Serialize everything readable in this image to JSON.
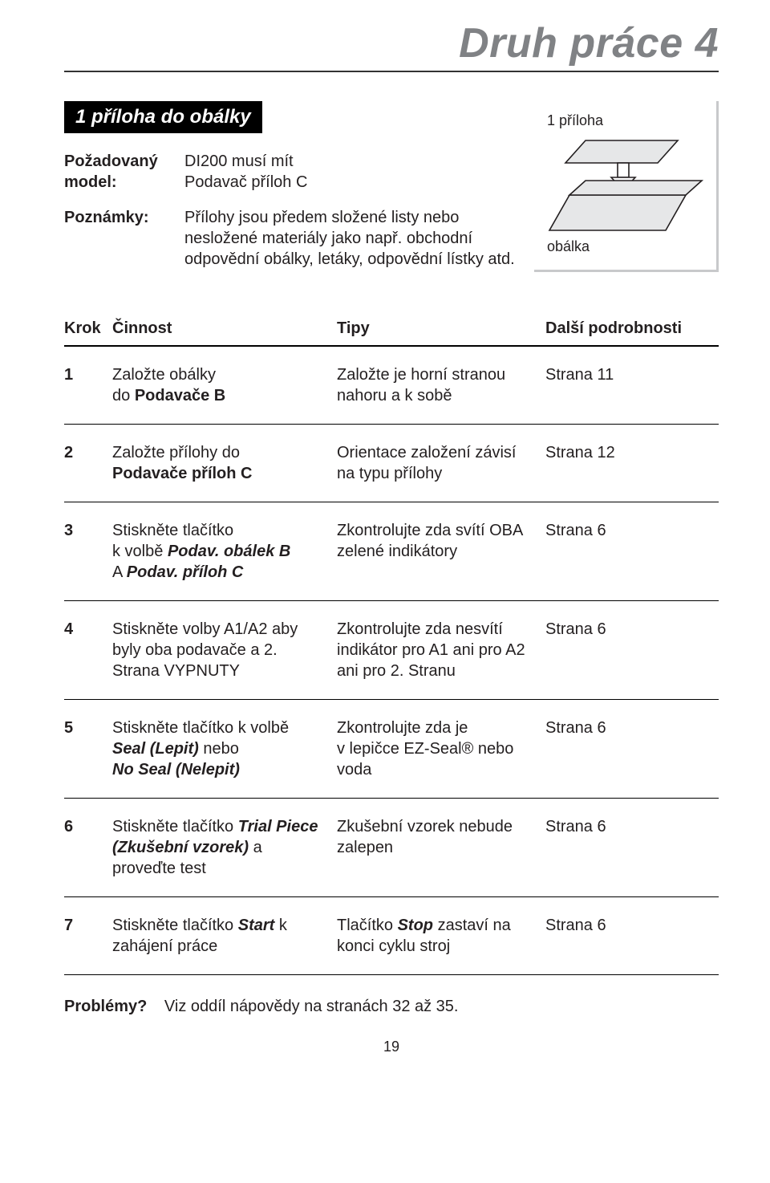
{
  "title": "Druh práce 4",
  "section_badge": "1 příloha do obálky",
  "meta": [
    {
      "label": "Požadovaný model:",
      "text": "DI200 musí mít\nPodavač příloh C"
    },
    {
      "label": "Poznámky:",
      "text": "Přílohy jsou předem složené listy nebo nesložené materiály jako např. obchodní odpovědní obálky, letáky, odpovědní lístky atd."
    }
  ],
  "diagram": {
    "label_top": "1 příloha",
    "label_bottom": "obálka",
    "stroke": "#231f20",
    "fill_insert": "#e6e7e8",
    "fill_envelope": "#e6e7e8",
    "arrow_fill": "#ffffff"
  },
  "table": {
    "head": {
      "step": "Krok",
      "action": "Činnost",
      "tip": "Tipy",
      "more": "Další podrobnosti"
    },
    "rows": [
      {
        "step": "1",
        "action_html": "Založte obálky<br>do <span class=\"b\">Podavače B</span>",
        "tip_html": "Založte je horní stranou nahoru a k sobě",
        "more": "Strana 11"
      },
      {
        "step": "2",
        "action_html": "Založte přílohy do<br><span class=\"b\">Podavače příloh C</span>",
        "tip_html": "Orientace založení závisí na typu přílohy",
        "more": "Strana 12"
      },
      {
        "step": "3",
        "action_html": "Stiskněte tlačítko<br>k volbě <span class=\"bi\">Podav. obálek B</span><br>A <span class=\"bi\">Podav. příloh C</span>",
        "tip_html": "Zkontrolujte zda svítí OBA zelené indikátory",
        "more": "Strana 6"
      },
      {
        "step": "4",
        "action_html": "Stiskněte volby A1/A2 aby byly oba podavače a 2. Strana VYPNUTY",
        "tip_html": "Zkontrolujte zda nesvítí indikátor pro A1 ani pro A2 ani pro 2. Stranu",
        "more": "Strana 6"
      },
      {
        "step": "5",
        "action_html": "Stiskněte tlačítko k volbě <span class=\"bi\">Seal (Lepit)</span> nebo<br><span class=\"bi\">No Seal (Nelepit)</span>",
        "tip_html": "Zkontrolujte zda je v&nbsp;lepičce EZ-Seal® nebo voda",
        "more": "Strana 6"
      },
      {
        "step": "6",
        "action_html": "Stiskněte tlačítko <span class=\"bi\">Trial Piece (Zkušební vzorek)</span> a proveďte test",
        "tip_html": "Zkušební vzorek nebude zalepen",
        "more": "Strana 6"
      },
      {
        "step": "7",
        "action_html": "Stiskněte tlačítko <span class=\"bi\">Start</span> k zahájení práce",
        "tip_html": "Tlačítko <span class=\"bi\">Stop</span> zastaví na konci cyklu stroj",
        "more": "Strana 6"
      }
    ]
  },
  "footer": {
    "question": "Problémy?",
    "text": "Viz oddíl nápovědy na stranách 32 až 35."
  },
  "page_number": "19"
}
